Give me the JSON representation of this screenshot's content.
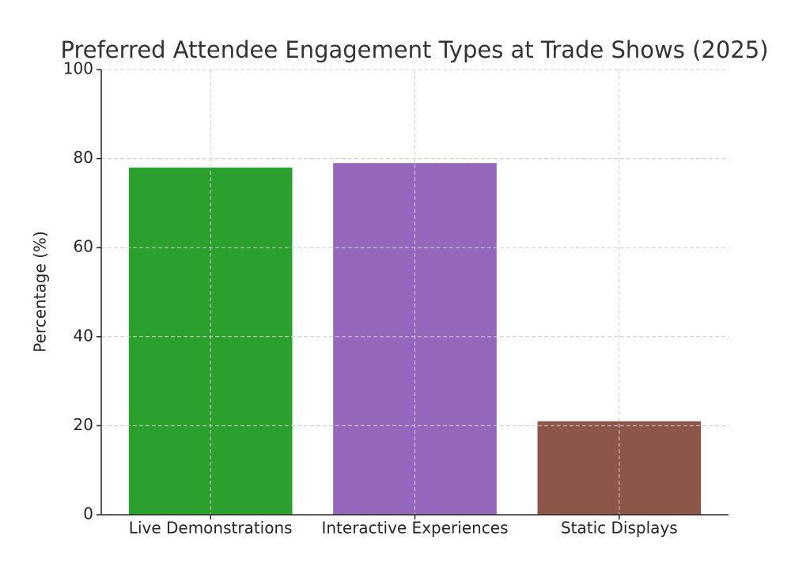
{
  "chart_data": {
    "type": "bar",
    "title": "Preferred Attendee Engagement Types at Trade Shows (2025)",
    "y_label": "Percentage (%)",
    "categories": [
      "Live Demonstrations",
      "Interactive Experiences",
      "Static Displays"
    ],
    "values": [
      78,
      79,
      21
    ],
    "colors": [
      "#2ca02c",
      "#9467bd",
      "#8c564b"
    ],
    "ylim": [
      0,
      100
    ],
    "yticks": [
      0,
      20,
      40,
      60,
      80,
      100
    ],
    "grid": true
  }
}
